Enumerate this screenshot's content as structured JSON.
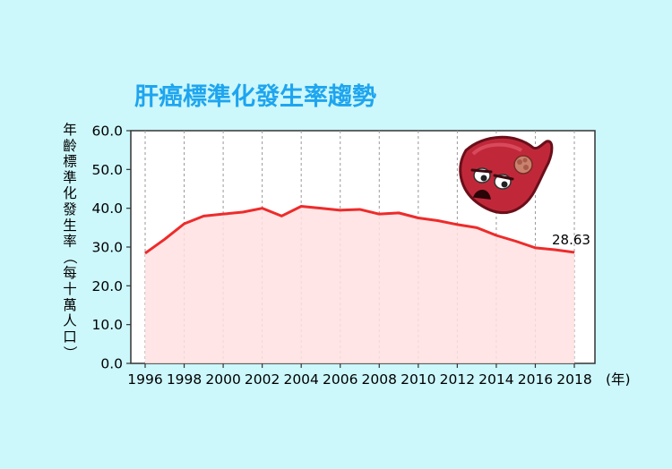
{
  "chart_data": {
    "type": "area",
    "title": "肝癌標準化發生率趨勢",
    "ylabel": "年齡標準化發生率（每十萬人口）",
    "xlabel_unit": "(年)",
    "ylim": [
      0,
      60
    ],
    "y_ticks": [
      "0.0",
      "10.0",
      "20.0",
      "30.0",
      "40.0",
      "50.0",
      "60.0"
    ],
    "x_tick_labels": [
      "1996",
      "1998",
      "2000",
      "2002",
      "2004",
      "2006",
      "2008",
      "2010",
      "2012",
      "2014",
      "2016",
      "2018"
    ],
    "x": [
      1996,
      1997,
      1998,
      1999,
      2000,
      2001,
      2002,
      2003,
      2004,
      2005,
      2006,
      2007,
      2008,
      2009,
      2010,
      2011,
      2012,
      2013,
      2014,
      2015,
      2016,
      2017,
      2018
    ],
    "series": [
      {
        "values": [
          28.4,
          32.0,
          36.0,
          38.0,
          38.5,
          39.0,
          40.0,
          38.0,
          40.5,
          40.0,
          39.5,
          39.7,
          38.5,
          38.8,
          37.5,
          36.8,
          35.8,
          35.0,
          33.0,
          31.5,
          29.8,
          29.3,
          28.63
        ]
      }
    ],
    "annotations": [
      {
        "x": 2018,
        "text": "28.63"
      }
    ],
    "colors": {
      "line": "#ee2b2b",
      "fill": "#ffe0e0",
      "title": "#1ea5ef",
      "background": "#ccf7fb",
      "plot_bg": "#ffffff"
    },
    "grid": "vertical dashed at even years"
  },
  "mascot_icon": "sad-liver-mascot-icon"
}
